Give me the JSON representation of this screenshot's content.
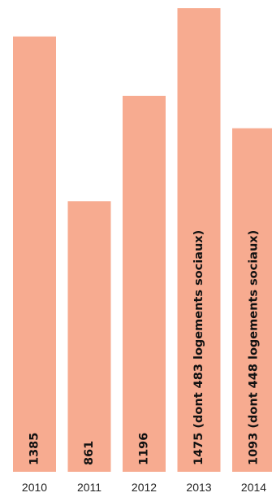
{
  "chart_data": {
    "type": "bar",
    "orientation": "vertical",
    "categories": [
      "2010",
      "2011",
      "2012",
      "2013",
      "2014"
    ],
    "values": [
      1385,
      861,
      1196,
      1475,
      1093
    ],
    "data_labels": [
      "1385",
      "861",
      "1196",
      "1475 (dont 483 logements sociaux)",
      "1093 (dont 448 logements sociaux)"
    ],
    "title": "",
    "xlabel": "",
    "ylabel": "",
    "ylim": [
      0,
      1500
    ],
    "grid": false,
    "legend": "none",
    "bar_color": "#f7ab90"
  }
}
